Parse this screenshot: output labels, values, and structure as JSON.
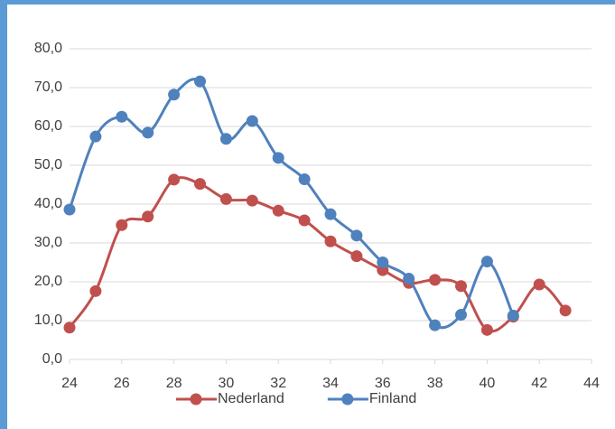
{
  "chart_data": {
    "type": "line",
    "x": [
      24,
      25,
      26,
      27,
      28,
      29,
      30,
      31,
      32,
      33,
      34,
      35,
      36,
      37,
      38,
      39,
      40,
      41,
      42,
      43
    ],
    "series": [
      {
        "name": "Nederland",
        "color": "#c0504d",
        "values": [
          8.2,
          17.6,
          34.6,
          36.8,
          46.3,
          45.2,
          41.3,
          40.9,
          38.3,
          35.8,
          30.4,
          26.6,
          23.0,
          19.7,
          20.5,
          18.9,
          7.6,
          11.0,
          19.3,
          12.6
        ]
      },
      {
        "name": "Finland",
        "color": "#4f81bd",
        "values": [
          38.6,
          57.4,
          62.5,
          58.4,
          68.2,
          71.6,
          56.8,
          61.4,
          51.9,
          46.4,
          37.4,
          31.9,
          25.0,
          20.8,
          8.8,
          11.5,
          25.2,
          11.3,
          null,
          null
        ]
      }
    ],
    "xlim": [
      24,
      44
    ],
    "xticks": [
      24,
      26,
      28,
      30,
      32,
      34,
      36,
      38,
      40,
      42,
      44
    ],
    "ylim": [
      0,
      80
    ],
    "yticks": [
      {
        "value": 0,
        "label": "0,0"
      },
      {
        "value": 10,
        "label": "10,0"
      },
      {
        "value": 20,
        "label": "20,0"
      },
      {
        "value": 30,
        "label": "30,0"
      },
      {
        "value": 40,
        "label": "40,0"
      },
      {
        "value": 50,
        "label": "50,0"
      },
      {
        "value": 60,
        "label": "60,0"
      },
      {
        "value": 70,
        "label": "70,0"
      },
      {
        "value": 80,
        "label": "80,0"
      }
    ],
    "grid": true,
    "legend": "bottom",
    "smooth": true
  }
}
